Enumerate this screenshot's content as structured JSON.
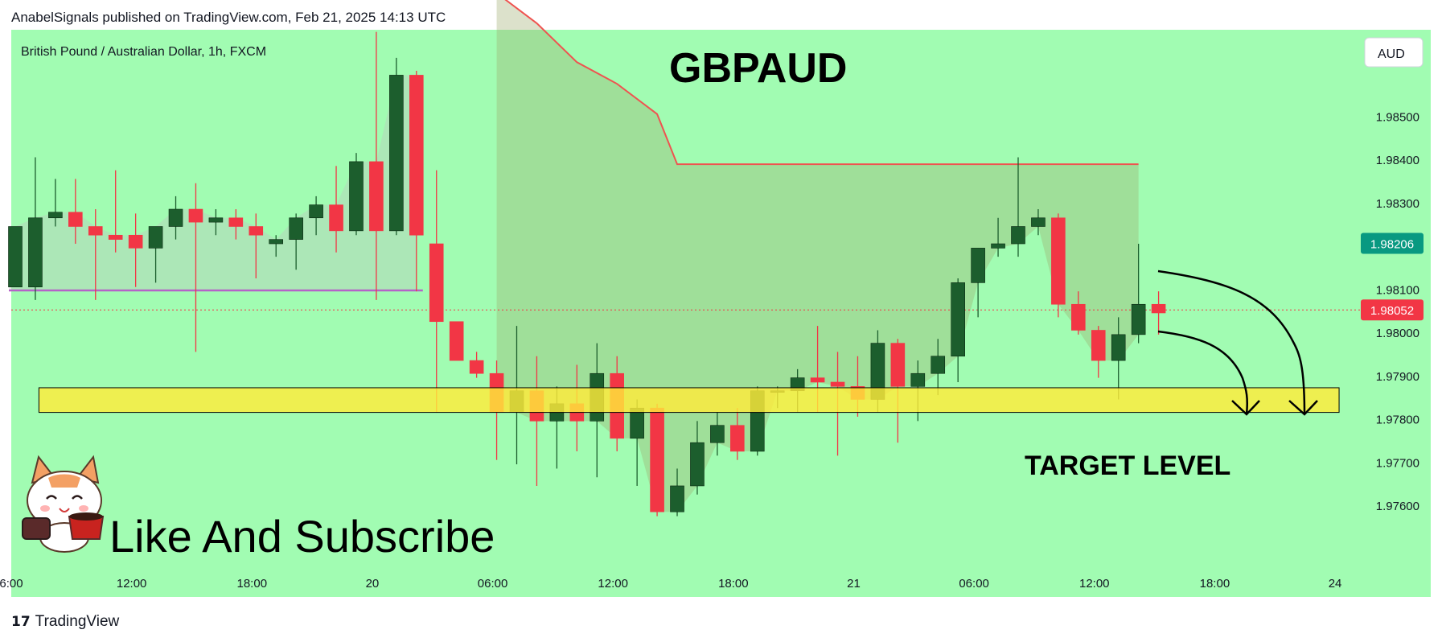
{
  "header": {
    "published_line": "AnabelSignals published on TradingView.com, Feb 21, 2025 14:13 UTC"
  },
  "symbol_line": "British Pound / Australian Dollar, 1h, FXCM",
  "headline": "GBPAUD",
  "currency_button": "AUD",
  "target_label": "TARGET LEVEL",
  "cta": "Like And Subscribe",
  "footer": {
    "logo_mark": "17",
    "brand": "TradingView"
  },
  "colors": {
    "background": "#a1fcb2",
    "bull": "#1c5e2d",
    "bear": "#f23645",
    "target_zone": "#ffeb3b",
    "resistance_line": "#ef5350",
    "support_line": "#b563c7",
    "current_price_bg": "#f23645",
    "prev_price_bg": "#089981"
  },
  "chart_data": {
    "type": "candlestick",
    "title": "British Pound / Australian Dollar, 1h, FXCM",
    "ylim": [
      1.9755,
      1.987
    ],
    "y_ticks": [
      "1.98500",
      "1.98400",
      "1.98300",
      "1.98100",
      "1.98000",
      "1.97900",
      "1.97800",
      "1.97700",
      "1.97600"
    ],
    "y_tick_values": [
      1.985,
      1.984,
      1.983,
      1.981,
      1.98,
      1.979,
      1.978,
      1.977,
      1.976
    ],
    "x_ticks": [
      "6:00",
      "12:00",
      "18:00",
      "20",
      "06:00",
      "12:00",
      "18:00",
      "21",
      "06:00",
      "12:00",
      "18:00",
      "24"
    ],
    "x_tick_bars": [
      0,
      6,
      12,
      18,
      24,
      30,
      36,
      42,
      48,
      54,
      60,
      66
    ],
    "price_labels": [
      {
        "text": "1.98206",
        "value": 1.98206,
        "kind": "prev"
      },
      {
        "text": "1.98052",
        "value": 1.98052,
        "kind": "current"
      }
    ],
    "candles": [
      {
        "o": 1.98105,
        "h": 1.98245,
        "l": 1.98105,
        "c": 1.98245
      },
      {
        "o": 1.98105,
        "h": 1.98405,
        "l": 1.98075,
        "c": 1.98265
      },
      {
        "o": 1.98265,
        "h": 1.98355,
        "l": 1.98245,
        "c": 1.98278
      },
      {
        "o": 1.98278,
        "h": 1.98355,
        "l": 1.98205,
        "c": 1.98245
      },
      {
        "o": 1.98245,
        "h": 1.98285,
        "l": 1.98075,
        "c": 1.98225
      },
      {
        "o": 1.98225,
        "h": 1.98375,
        "l": 1.98185,
        "c": 1.98215
      },
      {
        "o": 1.98225,
        "h": 1.98275,
        "l": 1.98105,
        "c": 1.98195
      },
      {
        "o": 1.98195,
        "h": 1.98245,
        "l": 1.98115,
        "c": 1.98245
      },
      {
        "o": 1.98245,
        "h": 1.98315,
        "l": 1.98215,
        "c": 1.98285
      },
      {
        "o": 1.98285,
        "h": 1.98345,
        "l": 1.97955,
        "c": 1.98255
      },
      {
        "o": 1.98255,
        "h": 1.98285,
        "l": 1.98225,
        "c": 1.98265
      },
      {
        "o": 1.98265,
        "h": 1.98285,
        "l": 1.98215,
        "c": 1.98245
      },
      {
        "o": 1.98245,
        "h": 1.98275,
        "l": 1.98125,
        "c": 1.98225
      },
      {
        "o": 1.98205,
        "h": 1.98225,
        "l": 1.98175,
        "c": 1.98215
      },
      {
        "o": 1.98215,
        "h": 1.98275,
        "l": 1.98145,
        "c": 1.98265
      },
      {
        "o": 1.98265,
        "h": 1.98315,
        "l": 1.98225,
        "c": 1.98295
      },
      {
        "o": 1.98295,
        "h": 1.98385,
        "l": 1.98185,
        "c": 1.98235
      },
      {
        "o": 1.98235,
        "h": 1.98415,
        "l": 1.98225,
        "c": 1.98395
      },
      {
        "o": 1.98395,
        "h": 1.98695,
        "l": 1.98075,
        "c": 1.98235
      },
      {
        "o": 1.98235,
        "h": 1.98635,
        "l": 1.98225,
        "c": 1.98595
      },
      {
        "o": 1.98595,
        "h": 1.98605,
        "l": 1.98095,
        "c": 1.98225
      },
      {
        "o": 1.98205,
        "h": 1.98375,
        "l": 1.97815,
        "c": 1.98025
      },
      {
        "o": 1.98025,
        "h": 1.98025,
        "l": 1.97945,
        "c": 1.97935
      },
      {
        "o": 1.97935,
        "h": 1.97955,
        "l": 1.97895,
        "c": 1.97905
      },
      {
        "o": 1.97905,
        "h": 1.97935,
        "l": 1.97705,
        "c": 1.97815
      },
      {
        "o": 1.97815,
        "h": 1.98015,
        "l": 1.97695,
        "c": 1.97865
      },
      {
        "o": 1.97865,
        "h": 1.97945,
        "l": 1.97645,
        "c": 1.97795
      },
      {
        "o": 1.97795,
        "h": 1.97875,
        "l": 1.97685,
        "c": 1.97835
      },
      {
        "o": 1.97835,
        "h": 1.97925,
        "l": 1.97725,
        "c": 1.97795
      },
      {
        "o": 1.97795,
        "h": 1.97975,
        "l": 1.97665,
        "c": 1.97905
      },
      {
        "o": 1.97905,
        "h": 1.97945,
        "l": 1.97725,
        "c": 1.97755
      },
      {
        "o": 1.97755,
        "h": 1.97845,
        "l": 1.97645,
        "c": 1.97825
      },
      {
        "o": 1.97825,
        "h": 1.97835,
        "l": 1.97575,
        "c": 1.97585
      },
      {
        "o": 1.97585,
        "h": 1.97685,
        "l": 1.97575,
        "c": 1.97645
      },
      {
        "o": 1.97645,
        "h": 1.97795,
        "l": 1.97625,
        "c": 1.97745
      },
      {
        "o": 1.97745,
        "h": 1.97815,
        "l": 1.97715,
        "c": 1.97785
      },
      {
        "o": 1.97785,
        "h": 1.97825,
        "l": 1.97705,
        "c": 1.97725
      },
      {
        "o": 1.97725,
        "h": 1.97875,
        "l": 1.97715,
        "c": 1.97865
      },
      {
        "o": 1.97865,
        "h": 1.97875,
        "l": 1.97825,
        "c": 1.97865
      },
      {
        "o": 1.97865,
        "h": 1.97915,
        "l": 1.97815,
        "c": 1.97895
      },
      {
        "o": 1.97895,
        "h": 1.98015,
        "l": 1.97815,
        "c": 1.97885
      },
      {
        "o": 1.97885,
        "h": 1.97955,
        "l": 1.97715,
        "c": 1.97875
      },
      {
        "o": 1.97875,
        "h": 1.97945,
        "l": 1.97805,
        "c": 1.97845
      },
      {
        "o": 1.97845,
        "h": 1.98005,
        "l": 1.97815,
        "c": 1.97975
      },
      {
        "o": 1.97975,
        "h": 1.97985,
        "l": 1.97745,
        "c": 1.97875
      },
      {
        "o": 1.97875,
        "h": 1.97935,
        "l": 1.97795,
        "c": 1.97905
      },
      {
        "o": 1.97905,
        "h": 1.97985,
        "l": 1.97855,
        "c": 1.97945
      },
      {
        "o": 1.97945,
        "h": 1.98125,
        "l": 1.97885,
        "c": 1.98115
      },
      {
        "o": 1.98115,
        "h": 1.98195,
        "l": 1.98035,
        "c": 1.98195
      },
      {
        "o": 1.98195,
        "h": 1.98265,
        "l": 1.98175,
        "c": 1.98205
      },
      {
        "o": 1.98205,
        "h": 1.98405,
        "l": 1.98175,
        "c": 1.98245
      },
      {
        "o": 1.98245,
        "h": 1.98285,
        "l": 1.98225,
        "c": 1.98265
      },
      {
        "o": 1.98265,
        "h": 1.98275,
        "l": 1.98035,
        "c": 1.98065
      },
      {
        "o": 1.98065,
        "h": 1.98095,
        "l": 1.97995,
        "c": 1.98005
      },
      {
        "o": 1.98005,
        "h": 1.98015,
        "l": 1.97895,
        "c": 1.97935
      },
      {
        "o": 1.97935,
        "h": 1.98035,
        "l": 1.97845,
        "c": 1.97995
      },
      {
        "o": 1.97995,
        "h": 1.98205,
        "l": 1.97975,
        "c": 1.98065
      },
      {
        "o": 1.98065,
        "h": 1.98095,
        "l": 1.97995,
        "c": 1.98045
      }
    ],
    "resistance_line": {
      "value": 1.98389,
      "from_bar": 33,
      "to_bar": 56,
      "slope_start_bar": 24,
      "slope_points": [
        [
          24,
          1.98785
        ],
        [
          26,
          1.98715
        ],
        [
          28,
          1.98625
        ],
        [
          30,
          1.98575
        ],
        [
          32,
          1.98505
        ],
        [
          33,
          1.98389
        ]
      ]
    },
    "support_line": {
      "value": 1.98097,
      "from_bar": 0,
      "to_bar": 20
    },
    "target_zone": {
      "from": 1.97815,
      "to": 1.97872,
      "from_bar": 1.5,
      "to_bar": 66
    }
  }
}
